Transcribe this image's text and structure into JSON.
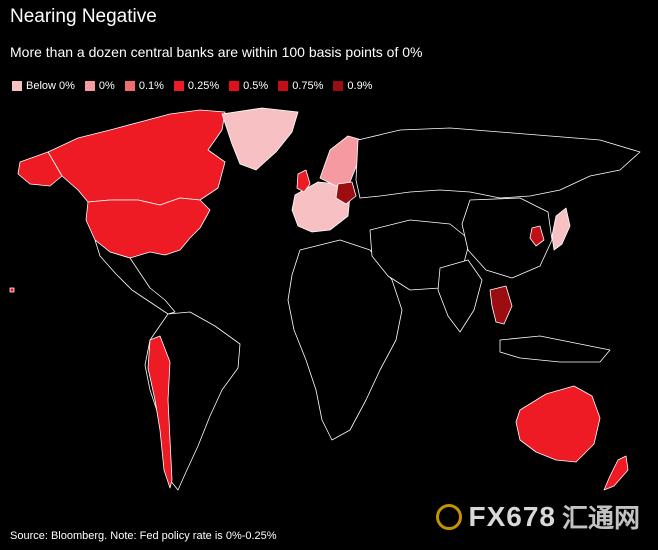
{
  "header": {
    "title": "Nearing Negative",
    "subtitle": "More than a dozen central banks are within 100 basis points of 0%"
  },
  "legend": [
    {
      "label": "Below 0%",
      "color": "#f7c0c3"
    },
    {
      "label": "0%",
      "color": "#f59aa0"
    },
    {
      "label": "0.1%",
      "color": "#f06b72"
    },
    {
      "label": "0.25%",
      "color": "#ee1a24"
    },
    {
      "label": "0.5%",
      "color": "#e0101a"
    },
    {
      "label": "0.75%",
      "color": "#c20e16"
    },
    {
      "label": "0.9%",
      "color": "#9c0d12"
    }
  ],
  "footer": {
    "source": "Source: Bloomberg. Note: Fed policy rate is 0%-0.25%"
  },
  "watermark": {
    "brand": "FX678",
    "brand_cn": "汇通网"
  },
  "map": {
    "land_color": "#000000",
    "border_color": "#ffffff"
  }
}
